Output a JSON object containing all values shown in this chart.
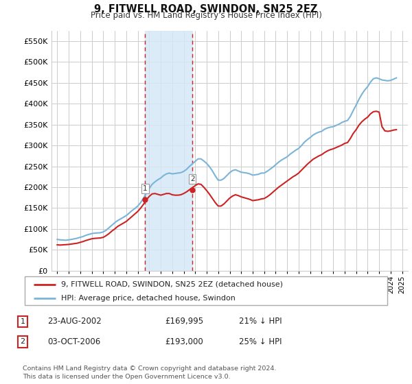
{
  "title": "9, FITWELL ROAD, SWINDON, SN25 2EZ",
  "subtitle": "Price paid vs. HM Land Registry's House Price Index (HPI)",
  "ylim": [
    0,
    575000
  ],
  "yticks": [
    0,
    50000,
    100000,
    150000,
    200000,
    250000,
    300000,
    350000,
    400000,
    450000,
    500000,
    550000
  ],
  "background_color": "#ffffff",
  "plot_bg_color": "#ffffff",
  "grid_color": "#cccccc",
  "hpi_color": "#7ab4d8",
  "price_color": "#cc2222",
  "sale1_x": 2002.65,
  "sale2_x": 2006.75,
  "sale1_price": 169995,
  "sale2_price": 193000,
  "legend_entries": [
    "9, FITWELL ROAD, SWINDON, SN25 2EZ (detached house)",
    "HPI: Average price, detached house, Swindon"
  ],
  "table_rows": [
    [
      "1",
      "23-AUG-2002",
      "£169,995",
      "21% ↓ HPI"
    ],
    [
      "2",
      "03-OCT-2006",
      "£193,000",
      "25% ↓ HPI"
    ]
  ],
  "footnote": "Contains HM Land Registry data © Crown copyright and database right 2024.\nThis data is licensed under the Open Government Licence v3.0.",
  "hpi_data": [
    [
      1995.0,
      75000
    ],
    [
      1995.25,
      74000
    ],
    [
      1995.5,
      73500
    ],
    [
      1995.75,
      73000
    ],
    [
      1996.0,
      74000
    ],
    [
      1996.25,
      75000
    ],
    [
      1996.5,
      76500
    ],
    [
      1996.75,
      78000
    ],
    [
      1997.0,
      80000
    ],
    [
      1997.25,
      82000
    ],
    [
      1997.5,
      85000
    ],
    [
      1997.75,
      87000
    ],
    [
      1998.0,
      89000
    ],
    [
      1998.25,
      90000
    ],
    [
      1998.5,
      90500
    ],
    [
      1998.75,
      91000
    ],
    [
      1999.0,
      93000
    ],
    [
      1999.25,
      97000
    ],
    [
      1999.5,
      103000
    ],
    [
      1999.75,
      109000
    ],
    [
      2000.0,
      115000
    ],
    [
      2000.25,
      120000
    ],
    [
      2000.5,
      124000
    ],
    [
      2000.75,
      128000
    ],
    [
      2001.0,
      132000
    ],
    [
      2001.25,
      138000
    ],
    [
      2001.5,
      144000
    ],
    [
      2001.75,
      149000
    ],
    [
      2002.0,
      155000
    ],
    [
      2002.25,
      163000
    ],
    [
      2002.5,
      174000
    ],
    [
      2002.75,
      186000
    ],
    [
      2003.0,
      197000
    ],
    [
      2003.25,
      207000
    ],
    [
      2003.5,
      213000
    ],
    [
      2003.75,
      218000
    ],
    [
      2004.0,
      222000
    ],
    [
      2004.25,
      228000
    ],
    [
      2004.5,
      232000
    ],
    [
      2004.75,
      234000
    ],
    [
      2005.0,
      232000
    ],
    [
      2005.25,
      233000
    ],
    [
      2005.5,
      234000
    ],
    [
      2005.75,
      235000
    ],
    [
      2006.0,
      238000
    ],
    [
      2006.25,
      243000
    ],
    [
      2006.5,
      250000
    ],
    [
      2006.75,
      256000
    ],
    [
      2007.0,
      262000
    ],
    [
      2007.25,
      268000
    ],
    [
      2007.5,
      268000
    ],
    [
      2007.75,
      263000
    ],
    [
      2008.0,
      257000
    ],
    [
      2008.25,
      249000
    ],
    [
      2008.5,
      239000
    ],
    [
      2008.75,
      227000
    ],
    [
      2009.0,
      217000
    ],
    [
      2009.25,
      217000
    ],
    [
      2009.5,
      221000
    ],
    [
      2009.75,
      228000
    ],
    [
      2010.0,
      235000
    ],
    [
      2010.25,
      240000
    ],
    [
      2010.5,
      242000
    ],
    [
      2010.75,
      239000
    ],
    [
      2011.0,
      236000
    ],
    [
      2011.25,
      235000
    ],
    [
      2011.5,
      234000
    ],
    [
      2011.75,
      232000
    ],
    [
      2012.0,
      229000
    ],
    [
      2012.25,
      230000
    ],
    [
      2012.5,
      231000
    ],
    [
      2012.75,
      234000
    ],
    [
      2013.0,
      234000
    ],
    [
      2013.25,
      238000
    ],
    [
      2013.5,
      243000
    ],
    [
      2013.75,
      248000
    ],
    [
      2014.0,
      254000
    ],
    [
      2014.25,
      260000
    ],
    [
      2014.5,
      265000
    ],
    [
      2014.75,
      269000
    ],
    [
      2015.0,
      273000
    ],
    [
      2015.25,
      279000
    ],
    [
      2015.5,
      284000
    ],
    [
      2015.75,
      289000
    ],
    [
      2016.0,
      293000
    ],
    [
      2016.25,
      300000
    ],
    [
      2016.5,
      308000
    ],
    [
      2016.75,
      314000
    ],
    [
      2017.0,
      319000
    ],
    [
      2017.25,
      325000
    ],
    [
      2017.5,
      329000
    ],
    [
      2017.75,
      332000
    ],
    [
      2018.0,
      334000
    ],
    [
      2018.25,
      339000
    ],
    [
      2018.5,
      342000
    ],
    [
      2018.75,
      344000
    ],
    [
      2019.0,
      345000
    ],
    [
      2019.25,
      348000
    ],
    [
      2019.5,
      351000
    ],
    [
      2019.75,
      355000
    ],
    [
      2020.0,
      358000
    ],
    [
      2020.25,
      360000
    ],
    [
      2020.5,
      370000
    ],
    [
      2020.75,
      384000
    ],
    [
      2021.0,
      397000
    ],
    [
      2021.25,
      411000
    ],
    [
      2021.5,
      423000
    ],
    [
      2021.75,
      433000
    ],
    [
      2022.0,
      441000
    ],
    [
      2022.25,
      452000
    ],
    [
      2022.5,
      460000
    ],
    [
      2022.75,
      462000
    ],
    [
      2023.0,
      460000
    ],
    [
      2023.25,
      457000
    ],
    [
      2023.5,
      456000
    ],
    [
      2023.75,
      455000
    ],
    [
      2024.0,
      456000
    ],
    [
      2024.25,
      459000
    ],
    [
      2024.5,
      462000
    ]
  ],
  "price_data": [
    [
      1995.0,
      62000
    ],
    [
      1995.25,
      61500
    ],
    [
      1995.5,
      62000
    ],
    [
      1995.75,
      62500
    ],
    [
      1996.0,
      63000
    ],
    [
      1996.25,
      64000
    ],
    [
      1996.5,
      65000
    ],
    [
      1996.75,
      66000
    ],
    [
      1997.0,
      68000
    ],
    [
      1997.25,
      70000
    ],
    [
      1997.5,
      72500
    ],
    [
      1997.75,
      74500
    ],
    [
      1998.0,
      76500
    ],
    [
      1998.25,
      77500
    ],
    [
      1998.5,
      78000
    ],
    [
      1998.75,
      78500
    ],
    [
      1999.0,
      80000
    ],
    [
      1999.25,
      84000
    ],
    [
      1999.5,
      89000
    ],
    [
      1999.75,
      95000
    ],
    [
      2000.0,
      100000
    ],
    [
      2000.25,
      106000
    ],
    [
      2000.5,
      110000
    ],
    [
      2000.75,
      114000
    ],
    [
      2001.0,
      118000
    ],
    [
      2001.25,
      124000
    ],
    [
      2001.5,
      130000
    ],
    [
      2001.75,
      136000
    ],
    [
      2002.0,
      142000
    ],
    [
      2002.25,
      150000
    ],
    [
      2002.5,
      159000
    ],
    [
      2002.75,
      170000
    ],
    [
      2003.0,
      178000
    ],
    [
      2003.25,
      184000
    ],
    [
      2003.5,
      185000
    ],
    [
      2003.75,
      183000
    ],
    [
      2004.0,
      181000
    ],
    [
      2004.25,
      183000
    ],
    [
      2004.5,
      185000
    ],
    [
      2004.75,
      185000
    ],
    [
      2005.0,
      182000
    ],
    [
      2005.25,
      181000
    ],
    [
      2005.5,
      181000
    ],
    [
      2005.75,
      182000
    ],
    [
      2006.0,
      185000
    ],
    [
      2006.25,
      189000
    ],
    [
      2006.5,
      194000
    ],
    [
      2006.75,
      199000
    ],
    [
      2007.0,
      204000
    ],
    [
      2007.25,
      208000
    ],
    [
      2007.5,
      207000
    ],
    [
      2007.75,
      200000
    ],
    [
      2008.0,
      192000
    ],
    [
      2008.25,
      183000
    ],
    [
      2008.5,
      173000
    ],
    [
      2008.75,
      163000
    ],
    [
      2009.0,
      155000
    ],
    [
      2009.25,
      155000
    ],
    [
      2009.5,
      160000
    ],
    [
      2009.75,
      167000
    ],
    [
      2010.0,
      174000
    ],
    [
      2010.25,
      179000
    ],
    [
      2010.5,
      182000
    ],
    [
      2010.75,
      180000
    ],
    [
      2011.0,
      177000
    ],
    [
      2011.25,
      175000
    ],
    [
      2011.5,
      173000
    ],
    [
      2011.75,
      171000
    ],
    [
      2012.0,
      168000
    ],
    [
      2012.25,
      169000
    ],
    [
      2012.5,
      170000
    ],
    [
      2012.75,
      172000
    ],
    [
      2013.0,
      173000
    ],
    [
      2013.25,
      177000
    ],
    [
      2013.5,
      182000
    ],
    [
      2013.75,
      188000
    ],
    [
      2014.0,
      194000
    ],
    [
      2014.25,
      200000
    ],
    [
      2014.5,
      205000
    ],
    [
      2014.75,
      210000
    ],
    [
      2015.0,
      215000
    ],
    [
      2015.25,
      220000
    ],
    [
      2015.5,
      225000
    ],
    [
      2015.75,
      229000
    ],
    [
      2016.0,
      234000
    ],
    [
      2016.25,
      241000
    ],
    [
      2016.5,
      248000
    ],
    [
      2016.75,
      255000
    ],
    [
      2017.0,
      261000
    ],
    [
      2017.25,
      267000
    ],
    [
      2017.5,
      271000
    ],
    [
      2017.75,
      275000
    ],
    [
      2018.0,
      278000
    ],
    [
      2018.25,
      283000
    ],
    [
      2018.5,
      287000
    ],
    [
      2018.75,
      290000
    ],
    [
      2019.0,
      292000
    ],
    [
      2019.25,
      295000
    ],
    [
      2019.5,
      298000
    ],
    [
      2019.75,
      301000
    ],
    [
      2020.0,
      305000
    ],
    [
      2020.25,
      307000
    ],
    [
      2020.5,
      317000
    ],
    [
      2020.75,
      329000
    ],
    [
      2021.0,
      338000
    ],
    [
      2021.25,
      349000
    ],
    [
      2021.5,
      357000
    ],
    [
      2021.75,
      363000
    ],
    [
      2022.0,
      368000
    ],
    [
      2022.25,
      376000
    ],
    [
      2022.5,
      381000
    ],
    [
      2022.75,
      382000
    ],
    [
      2023.0,
      380000
    ],
    [
      2023.25,
      345000
    ],
    [
      2023.5,
      335000
    ],
    [
      2023.75,
      334000
    ],
    [
      2024.0,
      335000
    ],
    [
      2024.25,
      337000
    ],
    [
      2024.5,
      338000
    ]
  ],
  "xtick_years": [
    1995,
    1996,
    1997,
    1998,
    1999,
    2000,
    2001,
    2002,
    2003,
    2004,
    2005,
    2006,
    2007,
    2008,
    2009,
    2010,
    2011,
    2012,
    2013,
    2014,
    2015,
    2016,
    2017,
    2018,
    2019,
    2020,
    2021,
    2022,
    2023,
    2024,
    2025
  ]
}
